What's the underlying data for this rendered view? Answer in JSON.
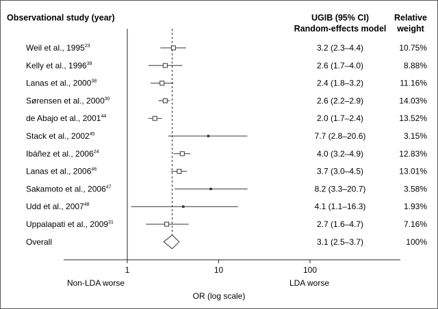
{
  "headers": {
    "study": "Observational study (year)",
    "ci_line1": "UGIB (95% CI)",
    "ci_line2": "Random-effects model",
    "weight_line1": "Relative",
    "weight_line2": "weight"
  },
  "axis": {
    "title": "OR (log scale)",
    "left_note": "Non-LDA worse",
    "right_note": "LDA worse"
  },
  "chart_data": {
    "type": "forest",
    "scale": "log",
    "xlim": [
      1,
      100
    ],
    "x_ticks": [
      {
        "value": 1,
        "label": "1"
      },
      {
        "value": 10,
        "label": "10"
      },
      {
        "value": 100,
        "label": "100"
      }
    ],
    "xlabel": "OR (log scale)",
    "reference_line": 1,
    "overall_line": 3.1,
    "studies": [
      {
        "name": "Weil et al., 1995",
        "ref": "23",
        "or": 3.2,
        "lo": 2.3,
        "hi": 4.4,
        "ci_text": "3.2 (2.3–4.4)",
        "weight": "10.75%"
      },
      {
        "name": "Kelly et al., 1996",
        "ref": "39",
        "or": 2.6,
        "lo": 1.7,
        "hi": 4.0,
        "ci_text": "2.6 (1.7–4.0)",
        "weight": "8.88%"
      },
      {
        "name": "Lanas et al., 2000",
        "ref": "38",
        "or": 2.4,
        "lo": 1.8,
        "hi": 3.2,
        "ci_text": "2.4 (1.8–3.2)",
        "weight": "11.16%"
      },
      {
        "name": "Sørensen et al., 2000",
        "ref": "30",
        "or": 2.6,
        "lo": 2.2,
        "hi": 2.9,
        "ci_text": "2.6 (2.2–2.9)",
        "weight": "14.03%"
      },
      {
        "name": "de Abajo et al., 2001",
        "ref": "44",
        "or": 2.0,
        "lo": 1.7,
        "hi": 2.4,
        "ci_text": "2.0 (1.7–2.4)",
        "weight": "13.52%"
      },
      {
        "name": "Stack et al., 2002",
        "ref": "45",
        "or": 7.7,
        "lo": 2.8,
        "hi": 20.6,
        "ci_text": "7.7 (2.8–20.6)",
        "weight": "3.15%"
      },
      {
        "name": "Ibáñez et al., 2006",
        "ref": "24",
        "or": 4.0,
        "lo": 3.2,
        "hi": 4.9,
        "ci_text": "4.0 (3.2–4.9)",
        "weight": "12.83%"
      },
      {
        "name": "Lanas et al., 2006",
        "ref": "46",
        "or": 3.7,
        "lo": 3.0,
        "hi": 4.5,
        "ci_text": "3.7 (3.0–4.5)",
        "weight": "13.01%"
      },
      {
        "name": "Sakamoto et al., 2006",
        "ref": "47",
        "or": 8.2,
        "lo": 3.3,
        "hi": 20.7,
        "ci_text": "8.2 (3.3–20.7)",
        "weight": "3.58%"
      },
      {
        "name": "Udd et al., 2007",
        "ref": "48",
        "or": 4.1,
        "lo": 1.1,
        "hi": 16.3,
        "ci_text": "4.1 (1.1–16.3)",
        "weight": "1.93%"
      },
      {
        "name": "Uppalapati et al., 2009",
        "ref": "31",
        "or": 2.7,
        "lo": 1.6,
        "hi": 4.7,
        "ci_text": "2.7 (1.6–4.7)",
        "weight": "7.16%"
      }
    ],
    "overall": {
      "name": "Overall",
      "or": 3.1,
      "lo": 2.5,
      "hi": 3.7,
      "ci_text": "3.1 (2.5–3.7)",
      "weight": "100%"
    }
  }
}
